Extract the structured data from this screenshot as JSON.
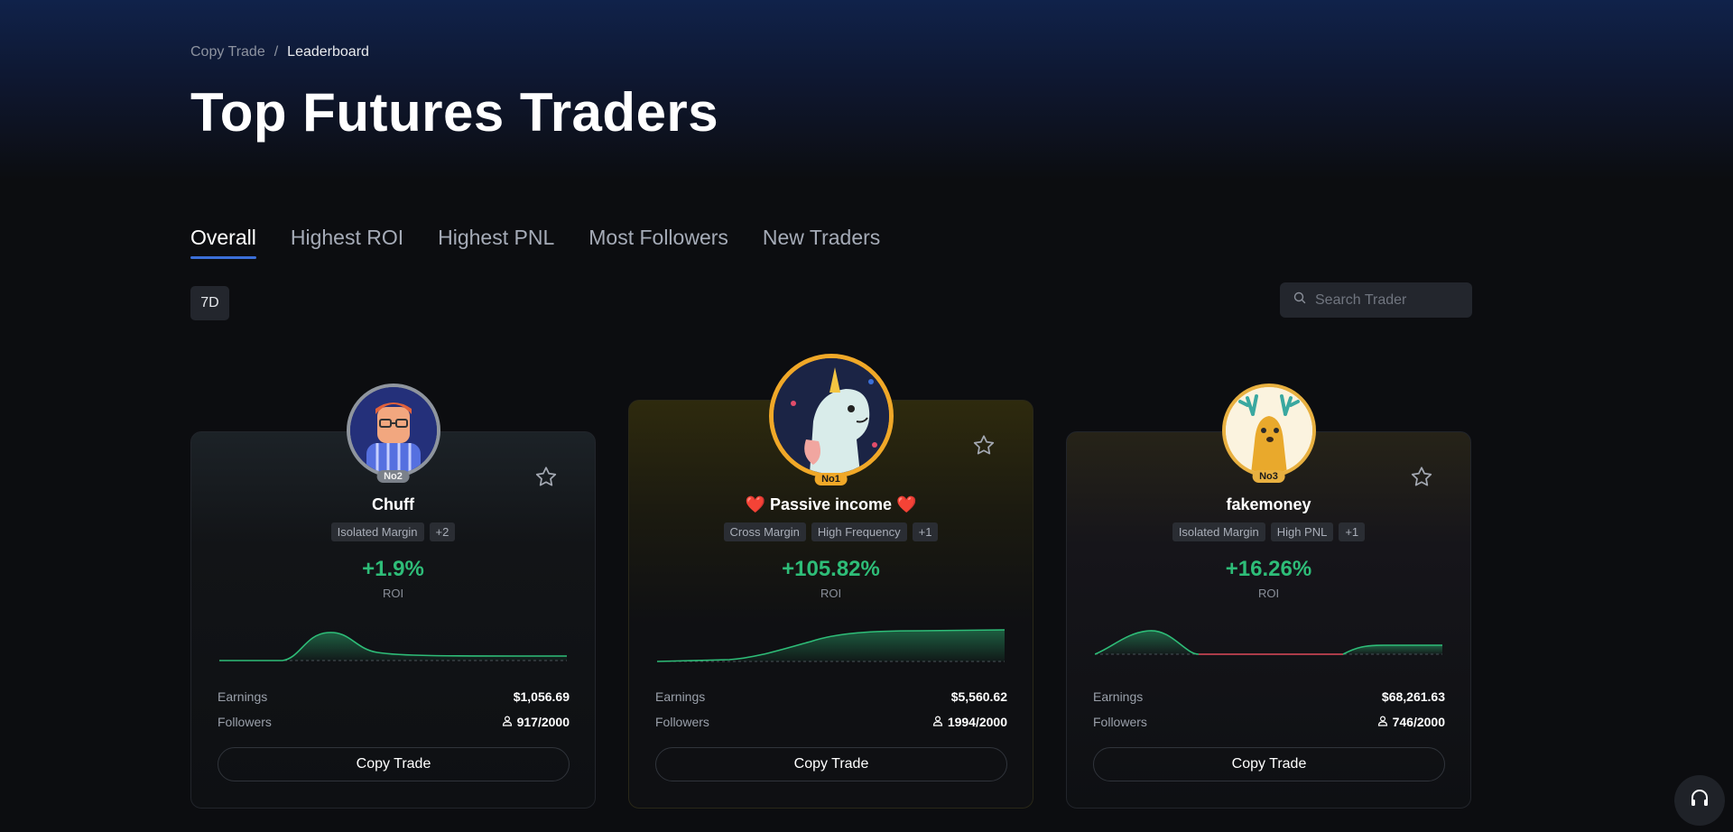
{
  "breadcrumb": {
    "parent": "Copy Trade",
    "separator": "/",
    "current": "Leaderboard"
  },
  "page_title": "Top Futures Traders",
  "tabs": [
    {
      "label": "Overall",
      "active": true
    },
    {
      "label": "Highest ROI",
      "active": false
    },
    {
      "label": "Highest PNL",
      "active": false
    },
    {
      "label": "Most Followers",
      "active": false
    },
    {
      "label": "New Traders",
      "active": false
    }
  ],
  "period": "7D",
  "search": {
    "placeholder": "Search Trader"
  },
  "labels": {
    "roi": "ROI",
    "earnings": "Earnings",
    "followers": "Followers",
    "copy_trade": "Copy Trade"
  },
  "traders": [
    {
      "rank_badge": "No2",
      "name": "Chuff",
      "tags": [
        "Isolated Margin",
        "+2"
      ],
      "roi": "+1.9%",
      "earnings": "$1,056.69",
      "followers": "917/2000",
      "accent": "#9aa3ad"
    },
    {
      "rank_badge": "No1",
      "name": "❤️ Passive income ❤️",
      "tags": [
        "Cross Margin",
        "High Frequency",
        "+1"
      ],
      "roi": "+105.82%",
      "earnings": "$5,560.62",
      "followers": "1994/2000",
      "accent": "#f0a828"
    },
    {
      "rank_badge": "No3",
      "name": "fakemoney",
      "tags": [
        "Isolated Margin",
        "High PNL",
        "+1"
      ],
      "roi": "+16.26%",
      "earnings": "$68,261.63",
      "followers": "746/2000",
      "accent": "#e8b040"
    }
  ],
  "colors": {
    "positive": "#2ebd78",
    "negative": "#e04a5a",
    "tab_underline": "#3b6fd8"
  },
  "icons": {
    "search": "search-icon",
    "star": "star-icon",
    "follower": "user-icon",
    "support": "headset-icon"
  }
}
